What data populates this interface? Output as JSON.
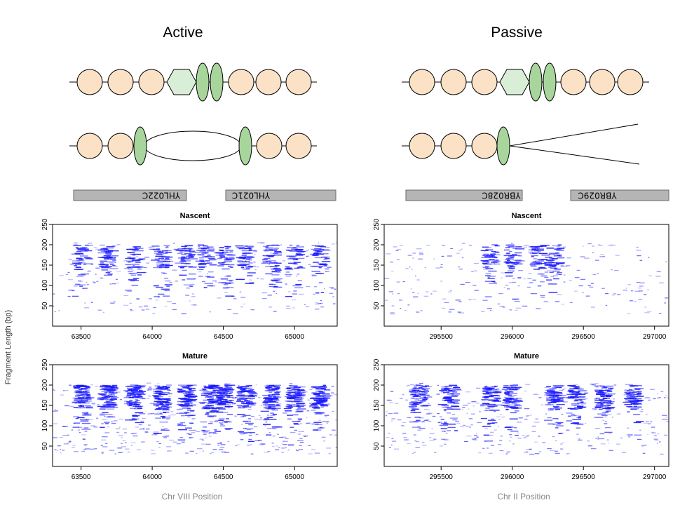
{
  "titles": {
    "active": "Active",
    "passive": "Passive"
  },
  "ylabel": "Fragment Length (bp)",
  "genes": {
    "active": [
      "YHL022C",
      "YHL021C"
    ],
    "passive": [
      "YBR028C",
      "YBR029C"
    ]
  },
  "colors": {
    "nucleosome": "#fbe2c6",
    "origin_hexagon": "#d9eed6",
    "mcm": "#a7d59b",
    "gene_box": "#b5b5b5",
    "fragments": "#1a1aff"
  },
  "chart_data": [
    {
      "type": "scatter",
      "title": "Nascent",
      "xlabel": "",
      "ylabel": "Fragment Length (bp)",
      "xlim": [
        63300,
        65300
      ],
      "ylim": [
        0,
        250
      ],
      "xticks": [
        63500,
        64000,
        64500,
        65000
      ],
      "yticks": [
        50,
        100,
        150,
        200,
        250
      ],
      "series": [
        {
          "values": "dense horizontal fragment segments centered at nucleosome positions ~63510, 63690, 63880, 64070, 64240, 64430, 64510, 64660, 64840, 65000, 65180; lengths mostly 140-200 bp"
        }
      ]
    },
    {
      "type": "scatter",
      "title": "Mature",
      "xlabel": "Chr VIII Position",
      "ylabel": "Fragment Length (bp)",
      "xlim": [
        63300,
        65300
      ],
      "ylim": [
        0,
        250
      ],
      "xticks": [
        63500,
        64000,
        64500,
        65000
      ],
      "yticks": [
        50,
        100,
        150,
        200,
        250
      ],
      "series": [
        {
          "values": "dense horizontal fragment segments centered at ~63510, 63690, 63880, 64070, 64240, 64510, 64660, 64840, 65000, 65180; lengths mostly 140-200 bp"
        }
      ]
    },
    {
      "type": "scatter",
      "title": "Nascent",
      "xlabel": "",
      "ylabel": "Fragment Length (bp)",
      "xlim": [
        295100,
        297100
      ],
      "ylim": [
        0,
        250
      ],
      "xticks": [
        295500,
        296000,
        296500,
        297000
      ],
      "yticks": [
        50,
        100,
        150,
        200,
        250
      ],
      "series": [
        {
          "values": "dense horizontal fragment segments centered at ~295850, 296010, 296190, 296300; lengths mostly 140-200 bp"
        }
      ]
    },
    {
      "type": "scatter",
      "title": "Mature",
      "xlabel": "Chr II Position",
      "ylabel": "Fragment Length (bp)",
      "xlim": [
        295100,
        297100
      ],
      "ylim": [
        0,
        250
      ],
      "xticks": [
        295500,
        296000,
        296500,
        297000
      ],
      "yticks": [
        50,
        100,
        150,
        200,
        250
      ],
      "series": [
        {
          "values": "dense horizontal fragment segments centered at ~295350, 295560, 295850, 296000, 296300, 296450, 296650, 296850; lengths mostly 140-200 bp"
        }
      ]
    }
  ]
}
